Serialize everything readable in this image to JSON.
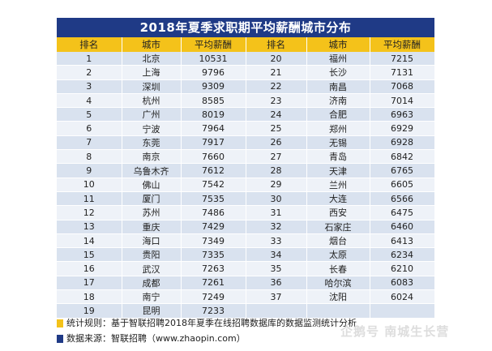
{
  "title": "2018年夏季求职期平均薪酬城市分布",
  "headers": [
    "排名",
    "城市",
    "平均薪酬",
    "排名",
    "城市",
    "平均薪酬"
  ],
  "rows": [
    {
      "rank_a": "1",
      "city_a": "北京",
      "pay_a": "10531",
      "rank_b": "20",
      "city_b": "福州",
      "pay_b": "7215"
    },
    {
      "rank_a": "2",
      "city_a": "上海",
      "pay_a": "9796",
      "rank_b": "21",
      "city_b": "长沙",
      "pay_b": "7131"
    },
    {
      "rank_a": "3",
      "city_a": "深圳",
      "pay_a": "9309",
      "rank_b": "22",
      "city_b": "南昌",
      "pay_b": "7068"
    },
    {
      "rank_a": "4",
      "city_a": "杭州",
      "pay_a": "8585",
      "rank_b": "23",
      "city_b": "济南",
      "pay_b": "7014"
    },
    {
      "rank_a": "5",
      "city_a": "广州",
      "pay_a": "8019",
      "rank_b": "24",
      "city_b": "合肥",
      "pay_b": "6963"
    },
    {
      "rank_a": "6",
      "city_a": "宁波",
      "pay_a": "7964",
      "rank_b": "25",
      "city_b": "郑州",
      "pay_b": "6929"
    },
    {
      "rank_a": "7",
      "city_a": "东莞",
      "pay_a": "7917",
      "rank_b": "26",
      "city_b": "无锡",
      "pay_b": "6928"
    },
    {
      "rank_a": "8",
      "city_a": "南京",
      "pay_a": "7660",
      "rank_b": "27",
      "city_b": "青岛",
      "pay_b": "6842"
    },
    {
      "rank_a": "9",
      "city_a": "乌鲁木齐",
      "pay_a": "7612",
      "rank_b": "28",
      "city_b": "天津",
      "pay_b": "6765"
    },
    {
      "rank_a": "10",
      "city_a": "佛山",
      "pay_a": "7542",
      "rank_b": "29",
      "city_b": "兰州",
      "pay_b": "6605"
    },
    {
      "rank_a": "11",
      "city_a": "厦门",
      "pay_a": "7535",
      "rank_b": "30",
      "city_b": "大连",
      "pay_b": "6566"
    },
    {
      "rank_a": "12",
      "city_a": "苏州",
      "pay_a": "7486",
      "rank_b": "31",
      "city_b": "西安",
      "pay_b": "6475"
    },
    {
      "rank_a": "13",
      "city_a": "重庆",
      "pay_a": "7429",
      "rank_b": "32",
      "city_b": "石家庄",
      "pay_b": "6460"
    },
    {
      "rank_a": "14",
      "city_a": "海口",
      "pay_a": "7349",
      "rank_b": "33",
      "city_b": "烟台",
      "pay_b": "6413"
    },
    {
      "rank_a": "15",
      "city_a": "贵阳",
      "pay_a": "7335",
      "rank_b": "34",
      "city_b": "太原",
      "pay_b": "6234"
    },
    {
      "rank_a": "16",
      "city_a": "武汉",
      "pay_a": "7263",
      "rank_b": "35",
      "city_b": "长春",
      "pay_b": "6210"
    },
    {
      "rank_a": "17",
      "city_a": "成都",
      "pay_a": "7261",
      "rank_b": "36",
      "city_b": "哈尔滨",
      "pay_b": "6083"
    },
    {
      "rank_a": "18",
      "city_a": "南宁",
      "pay_a": "7249",
      "rank_b": "37",
      "city_b": "沈阳",
      "pay_b": "6024"
    },
    {
      "rank_a": "19",
      "city_a": "昆明",
      "pay_a": "7233",
      "rank_b": "",
      "city_b": "",
      "pay_b": ""
    }
  ],
  "notes": {
    "stat_rule": "统计规则：基于智联招聘2018年夏季在线招聘数据库的数据监测统计分析",
    "source": "数据来源：智联招聘（www.zhaopin.com）"
  },
  "watermark": "企鹅号 南城生长营",
  "colors": {
    "title_bg": "#1f3a86",
    "header_bg": "#f4c21a",
    "row_odd": "#d9e2ef",
    "row_even": "#eef2f8"
  }
}
